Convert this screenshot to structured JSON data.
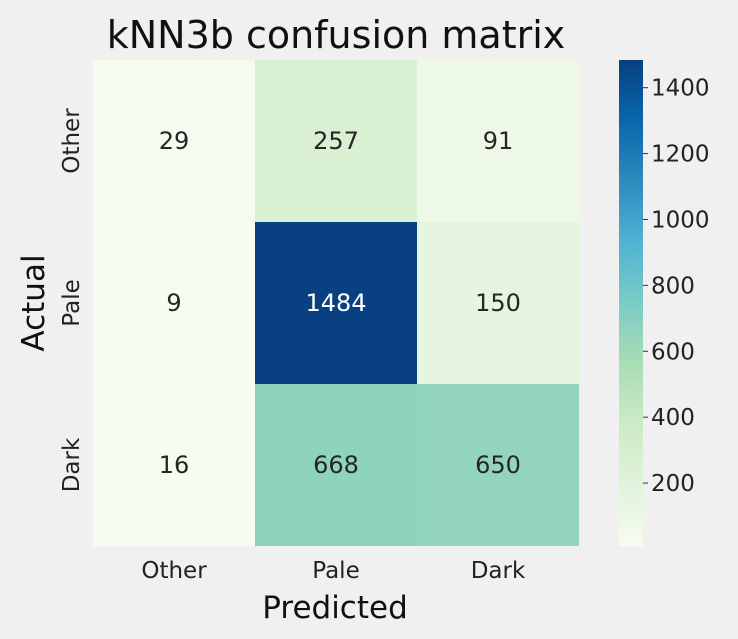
{
  "chart_data": {
    "type": "heatmap",
    "title": "kNN3b confusion matrix",
    "xlabel": "Predicted",
    "ylabel": "Actual",
    "x_categories": [
      "Other",
      "Pale",
      "Dark"
    ],
    "y_categories": [
      "Other",
      "Pale",
      "Dark"
    ],
    "values": [
      [
        29,
        257,
        91
      ],
      [
        9,
        1484,
        150
      ],
      [
        16,
        668,
        650
      ]
    ],
    "colormap": "GnBu",
    "colorbar": {
      "min": 9,
      "max": 1484,
      "ticks": [
        200,
        400,
        600,
        800,
        1000,
        1200,
        1400
      ]
    },
    "colors": {
      "background": "#f0f0f0",
      "low": "#f7fcf0",
      "high": "#084081"
    }
  }
}
